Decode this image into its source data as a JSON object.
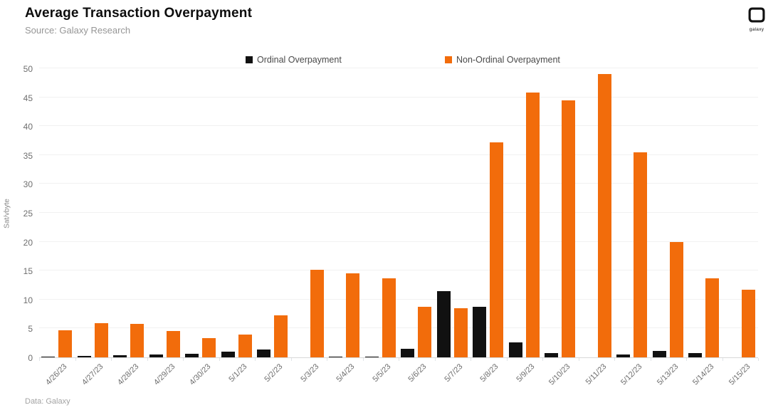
{
  "header": {
    "title": "Average Transaction Overpayment",
    "subtitle": "Source: Galaxy Research",
    "logo_label": "galaxy"
  },
  "legend": [
    {
      "label": "Ordinal Overpayment",
      "color": "#111111"
    },
    {
      "label": "Non-Ordinal Overpayment",
      "color": "#F26C0B"
    }
  ],
  "footer": {
    "note": "Data: Galaxy"
  },
  "chart_data": {
    "type": "bar",
    "title": "Average Transaction Overpayment",
    "subtitle": "Source: Galaxy Research",
    "xlabel": "",
    "ylabel": "Sat/vbyte",
    "ylim": [
      0,
      50
    ],
    "ytick_step": 5,
    "grid": true,
    "legend_position": "top",
    "categories": [
      "4/26/23",
      "4/27/23",
      "4/28/23",
      "4/29/23",
      "4/30/23",
      "5/1/23",
      "5/2/23",
      "5/3/23",
      "5/4/23",
      "5/5/23",
      "5/6/23",
      "5/7/23",
      "5/8/23",
      "5/9/23",
      "5/10/23",
      "5/11/23",
      "5/12/23",
      "5/13/23",
      "5/14/23",
      "5/15/23"
    ],
    "series": [
      {
        "name": "Ordinal Overpayment",
        "color": "#111111",
        "values": [
          0.1,
          0.25,
          0.4,
          0.5,
          0.6,
          1.0,
          1.3,
          0,
          0.15,
          0.15,
          1.5,
          11.4,
          8.7,
          2.6,
          0.8,
          0,
          0.5,
          1.1,
          0.8,
          0
        ]
      },
      {
        "name": "Non-Ordinal Overpayment",
        "color": "#F26C0B",
        "values": [
          4.7,
          5.9,
          5.8,
          4.6,
          3.3,
          4.0,
          7.3,
          15.1,
          14.5,
          13.7,
          8.8,
          8.5,
          37.2,
          45.8,
          44.5,
          49.0,
          35.5,
          20.0,
          13.7,
          11.7
        ]
      }
    ]
  }
}
